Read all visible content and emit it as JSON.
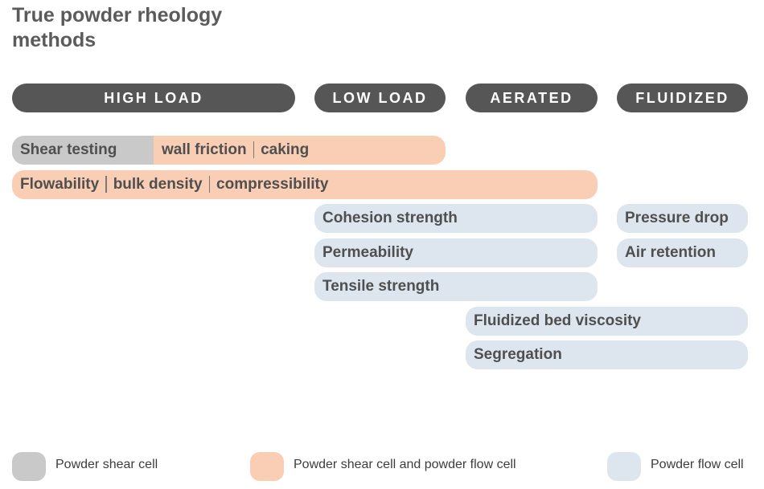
{
  "title": "True powder rheology methods",
  "categories": {
    "high_load": "HIGH LOAD",
    "low_load": "LOW LOAD",
    "aerated": "AERATED",
    "fluidized": "FLUIDIZED"
  },
  "methods": {
    "shear_testing": "Shear testing",
    "wall_friction": "wall friction",
    "caking": "caking",
    "flowability": "Flowability",
    "bulk_density": "bulk density",
    "compressibility": "compressibility",
    "cohesion_strength": "Cohesion strength",
    "permeability": "Permeability",
    "tensile_strength": "Tensile strength",
    "pressure_drop": "Pressure drop",
    "air_retention": "Air retention",
    "fluidized_bed_viscosity": "Fluidized bed viscosity",
    "segregation": "Segregation"
  },
  "legend": {
    "shear_cell": "Powder shear cell",
    "shear_and_flow_cell": "Powder shear cell and powder flow cell",
    "flow_cell": "Powder flow cell"
  },
  "colors": {
    "header": "#565656",
    "shear_cell": "#c9c9c9",
    "shear_and_flow_cell": "#f9ceb5",
    "flow_cell": "#dde5ee"
  }
}
